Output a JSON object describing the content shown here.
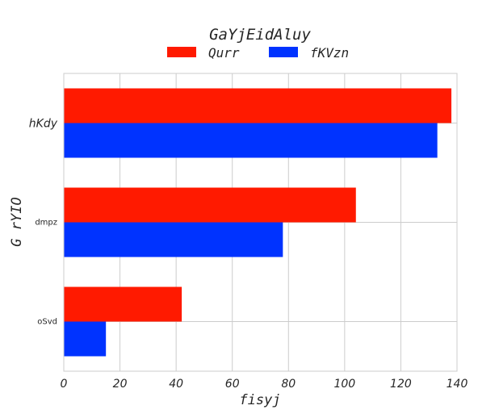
{
  "chart_data": {
    "type": "bar",
    "orientation": "horizontal",
    "title": "GaYjEidAluy",
    "xlabel": "fisyj",
    "ylabel": "G rYIO",
    "categories": [
      "hKdy",
      "dmpz",
      "oSvd"
    ],
    "series": [
      {
        "name": "Qurr",
        "color": "#ff1a00",
        "values": [
          138,
          104,
          42
        ]
      },
      {
        "name": "fKVzn",
        "color": "#0033ff",
        "values": [
          133,
          78,
          15
        ]
      }
    ],
    "xlim": [
      0,
      140
    ],
    "xticks": [
      0,
      20,
      40,
      60,
      80,
      100,
      120,
      140
    ],
    "grid": true,
    "legend_position": "top-center"
  }
}
